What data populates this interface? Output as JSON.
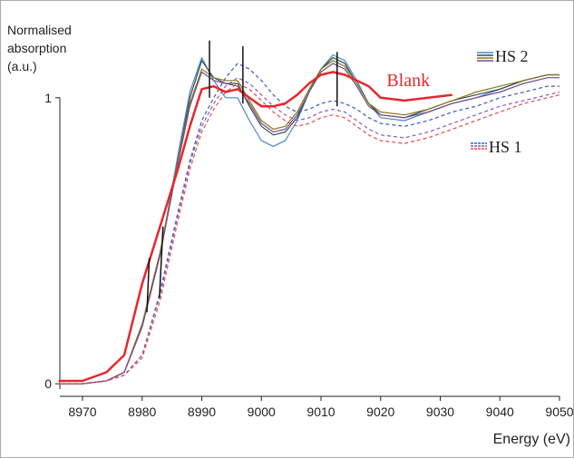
{
  "chart_data": {
    "type": "line",
    "ylabel": "Normalised\nabsorption\n(a.u.)",
    "xlabel": "Energy (eV)",
    "xlim": [
      8966.2,
      9050
    ],
    "ylim": [
      -0.044,
      1.31
    ],
    "xticks": [
      8970,
      8980,
      8990,
      9000,
      9010,
      9020,
      9030,
      9040,
      9050
    ],
    "yticks": [
      0,
      1
    ],
    "x": [
      8966,
      8970,
      8974,
      8977,
      8980,
      8983,
      8986,
      8988,
      8990,
      8992,
      8994,
      8996,
      8998,
      9000,
      9002,
      9004,
      9006,
      9008,
      9010,
      9012,
      9014,
      9016,
      9018,
      9020,
      9024,
      9028,
      9032,
      9036,
      9040,
      9044,
      9048,
      9050
    ],
    "series": [
      {
        "name": "Blank",
        "color": "#e8262c",
        "style": "solid",
        "width": 2.5,
        "values": [
          0.01,
          0.01,
          0.04,
          0.1,
          0.35,
          0.55,
          0.75,
          0.9,
          1.03,
          1.04,
          1.02,
          1.03,
          1.0,
          0.97,
          0.97,
          0.98,
          1.01,
          1.05,
          1.08,
          1.09,
          1.08,
          1.06,
          1.04,
          1.0,
          0.99,
          1.0,
          1.01,
          null,
          null,
          null,
          null,
          null
        ]
      }
    ],
    "groups": [
      {
        "name": "HS 2",
        "style": "solid",
        "series": [
          {
            "color": "#4a86c8",
            "values": [
              0.0,
              0.0,
              0.01,
              0.04,
              0.2,
              0.45,
              0.8,
              1.02,
              1.14,
              1.06,
              1.0,
              1.0,
              0.92,
              0.85,
              0.83,
              0.85,
              0.92,
              1.02,
              1.1,
              1.15,
              1.13,
              1.06,
              0.98,
              0.93,
              0.92,
              0.95,
              0.98,
              1.0,
              1.03,
              1.06,
              1.08,
              1.08
            ]
          },
          {
            "color": "#2f4f4f",
            "values": [
              0.0,
              0.0,
              0.01,
              0.04,
              0.2,
              0.45,
              0.78,
              1.0,
              1.13,
              1.07,
              1.05,
              1.05,
              0.97,
              0.9,
              0.87,
              0.88,
              0.93,
              1.02,
              1.1,
              1.14,
              1.12,
              1.05,
              0.98,
              0.94,
              0.93,
              0.96,
              0.99,
              1.01,
              1.03,
              1.06,
              1.08,
              1.08
            ]
          },
          {
            "color": "#8a7a1a",
            "values": [
              0.0,
              0.0,
              0.01,
              0.04,
              0.21,
              0.46,
              0.78,
              0.98,
              1.1,
              1.07,
              1.06,
              1.06,
              0.99,
              0.92,
              0.89,
              0.9,
              0.95,
              1.03,
              1.1,
              1.13,
              1.11,
              1.05,
              0.98,
              0.95,
              0.94,
              0.96,
              0.99,
              1.02,
              1.04,
              1.06,
              1.08,
              1.08
            ]
          },
          {
            "color": "#7a4a8a",
            "values": [
              0.0,
              0.0,
              0.01,
              0.04,
              0.2,
              0.45,
              0.77,
              0.97,
              1.09,
              1.06,
              1.05,
              1.04,
              0.98,
              0.91,
              0.88,
              0.89,
              0.94,
              1.02,
              1.09,
              1.12,
              1.1,
              1.04,
              0.97,
              0.94,
              0.93,
              0.95,
              0.98,
              1.0,
              1.02,
              1.05,
              1.07,
              1.07
            ]
          }
        ]
      },
      {
        "name": "HS 1",
        "style": "dashed",
        "series": [
          {
            "color": "#3a5ac8",
            "values": [
              0.0,
              0.0,
              0.01,
              0.03,
              0.1,
              0.32,
              0.6,
              0.78,
              0.92,
              1.0,
              1.07,
              1.12,
              1.1,
              1.06,
              1.01,
              0.97,
              0.95,
              0.96,
              0.98,
              0.99,
              0.98,
              0.96,
              0.93,
              0.91,
              0.9,
              0.92,
              0.95,
              0.97,
              1.0,
              1.02,
              1.04,
              1.04
            ]
          },
          {
            "color": "#8a5ab8",
            "values": [
              0.0,
              0.0,
              0.01,
              0.03,
              0.1,
              0.31,
              0.59,
              0.77,
              0.9,
              0.98,
              1.04,
              1.07,
              1.05,
              1.01,
              0.97,
              0.94,
              0.92,
              0.93,
              0.95,
              0.96,
              0.95,
              0.92,
              0.89,
              0.87,
              0.86,
              0.88,
              0.91,
              0.94,
              0.97,
              0.99,
              1.01,
              1.02
            ]
          },
          {
            "color": "#e84a4a",
            "values": [
              0.0,
              0.0,
              0.01,
              0.03,
              0.09,
              0.29,
              0.57,
              0.75,
              0.88,
              0.96,
              1.02,
              1.05,
              1.03,
              0.99,
              0.95,
              0.92,
              0.9,
              0.91,
              0.93,
              0.94,
              0.93,
              0.9,
              0.87,
              0.85,
              0.84,
              0.86,
              0.89,
              0.92,
              0.95,
              0.98,
              1.0,
              1.01
            ]
          }
        ]
      }
    ],
    "annotations": [
      {
        "text": "Blank",
        "color": "#e8262c",
        "x": 9021,
        "y": 1.04
      }
    ],
    "markers": [
      {
        "x": [
          8980.8,
          8981.2
        ],
        "y": [
          0.25,
          0.44
        ]
      },
      {
        "x": [
          8982.9,
          8983.5
        ],
        "y": [
          0.3,
          0.55
        ]
      },
      {
        "x": [
          8991.3,
          8991.3
        ],
        "y": [
          1.0,
          1.2
        ]
      },
      {
        "x": [
          8996.9,
          8996.9
        ],
        "y": [
          0.98,
          1.18
        ]
      },
      {
        "x": [
          9012.7,
          9012.7
        ],
        "y": [
          0.97,
          1.16
        ]
      }
    ]
  }
}
